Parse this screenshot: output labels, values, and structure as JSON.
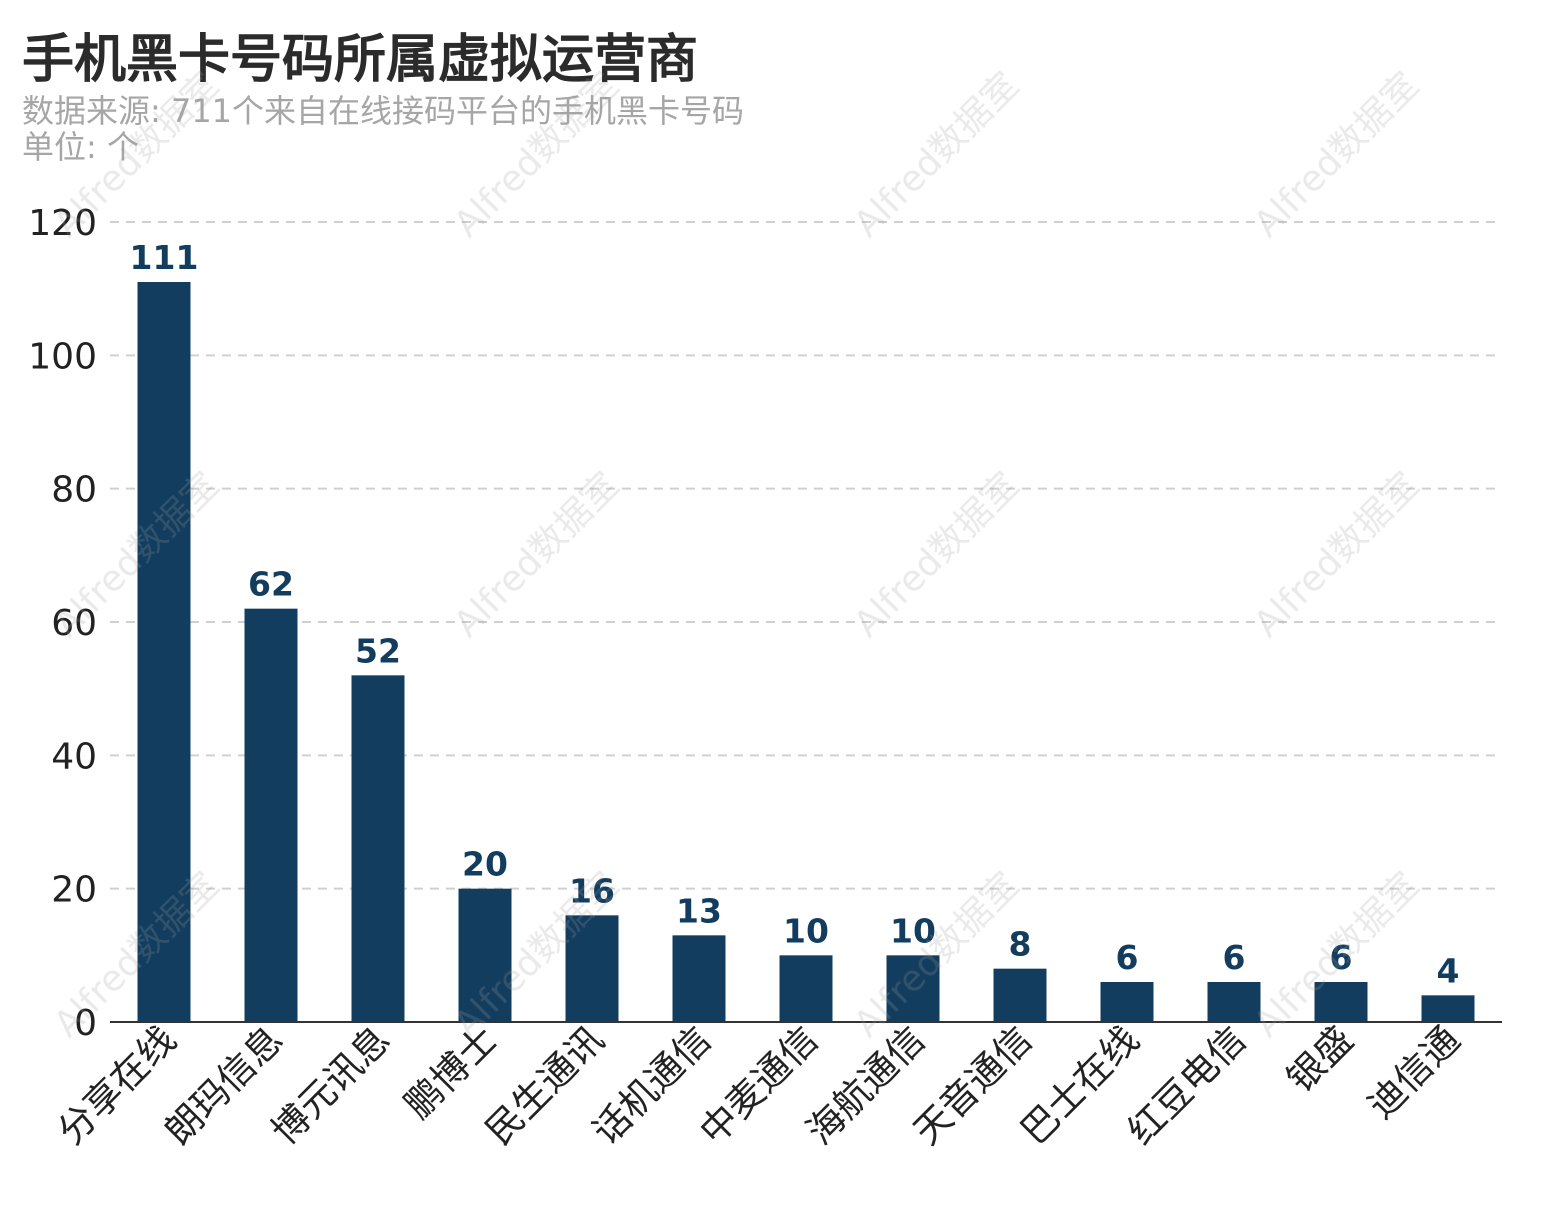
{
  "title": "手机黑卡号码所属虚拟运营商",
  "subtitle_source": "数据来源: 711个来自在线接码平台的手机黑卡号码",
  "subtitle_unit": "单位: 个",
  "watermark": "Alfred数据室",
  "colors": {
    "bar": "#133d5e",
    "label": "#133d5e",
    "grid": "#d0d0d0",
    "axis": "#333333",
    "tick": "#222222"
  },
  "chart_data": {
    "type": "bar",
    "title": "手机黑卡号码所属虚拟运营商",
    "categories": [
      "分享在线",
      "朗玛信息",
      "博元讯息",
      "鹏博士",
      "民生通讯",
      "话机通信",
      "中麦通信",
      "海航通信",
      "天音通信",
      "巴士在线",
      "红豆电信",
      "银盛",
      "迪信通"
    ],
    "values": [
      111,
      62,
      52,
      20,
      16,
      13,
      10,
      10,
      8,
      6,
      6,
      6,
      4
    ],
    "xlabel": "",
    "ylabel": "",
    "ylim": [
      0,
      120
    ],
    "yticks": [
      0,
      20,
      40,
      60,
      80,
      100,
      120
    ],
    "grid": true,
    "data_labels": true
  }
}
